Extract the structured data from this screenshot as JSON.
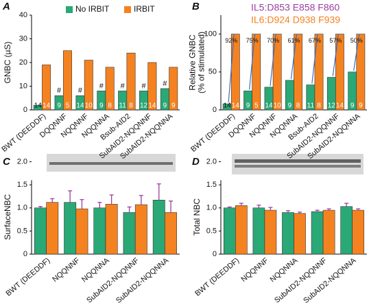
{
  "chart_data": [
    {
      "type": "bar",
      "panel_label": "A",
      "y_label": "GNBC (µS)",
      "categories": [
        "BWT (DEEDDF)",
        "DQQNNF",
        "NQQNNF",
        "NQQNNA",
        "Bsub-AID2",
        "SubAID2-NQQNNF",
        "SubAID2-NQQNNA"
      ],
      "series": [
        {
          "name": "No IRBIT",
          "color": "#2aa876",
          "values": [
            2,
            6,
            6,
            8,
            8,
            8,
            9
          ],
          "n": [
            14,
            9,
            14,
            9,
            11,
            12,
            9
          ],
          "annotations": [
            null,
            "#",
            "#",
            "#",
            "#",
            "#",
            "#"
          ]
        },
        {
          "name": "IRBIT",
          "color": "#f58220",
          "values": [
            19,
            25,
            21,
            18,
            24,
            20,
            18
          ],
          "n": [
            14,
            5,
            10,
            8,
            8,
            14,
            9
          ]
        }
      ],
      "ylim": [
        0,
        40
      ],
      "yticks": [
        0,
        10,
        20,
        30,
        40
      ],
      "legend": "top"
    },
    {
      "type": "bar",
      "panel_label": "B",
      "y_label": [
        "Relative GNBC",
        "(% of stimulated)"
      ],
      "notes": [
        "IL5:D853 E858 F860",
        "IL6:D924 D938 F939"
      ],
      "categories": [
        "BWT (DEEDDF)",
        "DQQNNF",
        "NQQNNF",
        "NQQNNA",
        "Bsub-AID2",
        "SubAID2-NQQNNF",
        "SubAID2-NQQNNA"
      ],
      "drop_labels": [
        "92%",
        "75%",
        "70%",
        "61%",
        "67%",
        "57%",
        "50%"
      ],
      "series": [
        {
          "name": "No IRBIT",
          "color": "#2aa876",
          "values": [
            8,
            25,
            30,
            39,
            33,
            43,
            50
          ],
          "n": [
            14,
            9,
            14,
            9,
            11,
            12,
            9
          ]
        },
        {
          "name": "IRBIT",
          "color": "#f58220",
          "values": [
            100,
            100,
            100,
            100,
            100,
            100,
            100
          ],
          "n": [
            14,
            5,
            10,
            8,
            8,
            14,
            9
          ]
        }
      ],
      "ylim": [
        0,
        125
      ],
      "yticks": [
        0,
        50,
        100
      ]
    },
    {
      "type": "bar",
      "panel_label": "C",
      "y_label": "SurfaceNBC",
      "categories": [
        "BWT (DEEDDF)",
        "NQQNNF",
        "NQQNNA",
        "SubAID2-NQQNNF",
        "SubAID2-NQQNNA"
      ],
      "series": [
        {
          "name": "No IRBIT",
          "color": "#2aa876",
          "values": [
            1.0,
            1.12,
            1.0,
            0.9,
            1.17
          ],
          "errors": [
            0.03,
            0.25,
            0.12,
            0.12,
            0.35
          ]
        },
        {
          "name": "IRBIT",
          "color": "#f58220",
          "values": [
            1.12,
            0.98,
            1.08,
            1.07,
            0.9
          ],
          "errors": [
            0.08,
            0.2,
            0.2,
            0.2,
            0.25
          ]
        }
      ],
      "ylim": [
        0,
        2.2
      ],
      "yticks": [
        0,
        0.5,
        {
          "value": 1,
          "label": "1.0"
        },
        1.5,
        {
          "value": 2,
          "label": "2.0"
        }
      ]
    },
    {
      "type": "bar",
      "panel_label": "D",
      "y_label": "Total NBC",
      "categories": [
        "BWT (DEEDDF)",
        "NQQNNF",
        "NQQNNA",
        "SubAID2-NQQNNF",
        "SubAID2-NQQNNA"
      ],
      "series": [
        {
          "name": "No IRBIT",
          "color": "#2aa876",
          "values": [
            1.0,
            1.0,
            0.9,
            0.92,
            1.03
          ],
          "errors": [
            0.02,
            0.06,
            0.04,
            0.03,
            0.07
          ]
        },
        {
          "name": "IRBIT",
          "color": "#f58220",
          "values": [
            1.05,
            0.95,
            0.88,
            0.95,
            0.95
          ],
          "errors": [
            0.05,
            0.06,
            0.03,
            0.03,
            0.03
          ]
        }
      ],
      "ylim": [
        0,
        2.2
      ],
      "yticks": [
        0,
        0.5,
        {
          "value": 1,
          "label": "1.0"
        },
        1.5,
        {
          "value": 2,
          "label": "2.0"
        }
      ]
    }
  ]
}
